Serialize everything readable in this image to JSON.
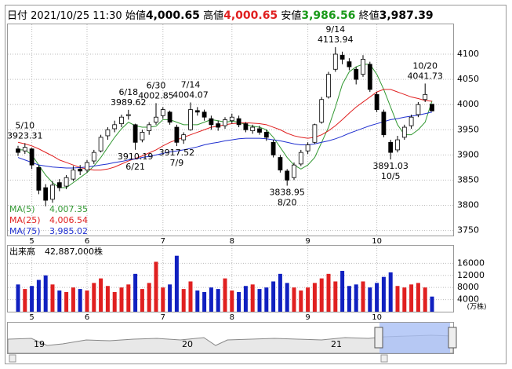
{
  "header": {
    "date_label": "日付",
    "date": "2021/10/25 11:30",
    "open_label": "始値",
    "open": "4,000.65",
    "high_label": "高値",
    "high": "4,000.65",
    "low_label": "安値",
    "low": "3,986.56",
    "close_label": "終値",
    "close": "3,987.39"
  },
  "chart_data": {
    "type": "candlestick",
    "categories": [
      null,
      null,
      "5",
      null,
      null,
      null,
      null,
      null,
      null,
      null,
      "6",
      null,
      null,
      null,
      null,
      null,
      null,
      null,
      null,
      null,
      null,
      "7",
      null,
      null,
      null,
      null,
      null,
      null,
      null,
      null,
      null,
      "8",
      null,
      null,
      null,
      null,
      null,
      null,
      null,
      null,
      null,
      null,
      "9",
      null,
      null,
      null,
      null,
      null,
      null,
      null,
      null,
      null,
      "10",
      null,
      null,
      null,
      null,
      null,
      null,
      null,
      null
    ],
    "open": [
      3912,
      3908,
      3912,
      3875,
      3835,
      3812,
      3845,
      3838,
      3852,
      3872,
      3870,
      3888,
      3908,
      3938,
      3952,
      3962,
      3978,
      3960,
      3930,
      3948,
      3965,
      3978,
      3985,
      3955,
      3930,
      3950,
      3988,
      3985,
      3972,
      3962,
      3958,
      3968,
      3972,
      3962,
      3948,
      3952,
      3945,
      3925,
      3895,
      3868,
      3855,
      3882,
      3908,
      3925,
      3965,
      4015,
      4070,
      4098,
      4085,
      4070,
      4060,
      4080,
      4020,
      3985,
      3925,
      3910,
      3935,
      3958,
      3980,
      4010,
      4000.65
    ],
    "high": [
      3918,
      3923.31,
      3914,
      3880,
      3842,
      3848,
      3852,
      3860,
      3878,
      3880,
      3890,
      3910,
      3940,
      3955,
      3968,
      3980,
      3989.62,
      3962,
      3950,
      3965,
      4002.85,
      3995,
      3988,
      3960,
      3945,
      4004.07,
      3995,
      3990,
      3978,
      3968,
      3975,
      3982,
      3978,
      3965,
      3960,
      3958,
      3950,
      3930,
      3900,
      3872,
      3885,
      3910,
      3925,
      3962,
      4015,
      4065,
      4113.94,
      4105,
      4092,
      4075,
      4098,
      4085,
      4025,
      3990,
      3930,
      3938,
      3960,
      3980,
      4005,
      4041.73,
      4000.65
    ],
    "low": [
      3898,
      3902,
      3872,
      3822,
      3798,
      3805,
      3828,
      3832,
      3848,
      3860,
      3865,
      3882,
      3905,
      3930,
      3945,
      3955,
      3970,
      3910.19,
      3925,
      3940,
      3960,
      3972,
      3960,
      3917.52,
      3922,
      3948,
      3978,
      3968,
      3950,
      3948,
      3952,
      3962,
      3955,
      3945,
      3942,
      3940,
      3928,
      3895,
      3865,
      3838.95,
      3850,
      3878,
      3902,
      3922,
      3962,
      4012,
      4065,
      4080,
      4068,
      4040,
      4055,
      4025,
      3985,
      3935,
      3891.03,
      3905,
      3930,
      3952,
      3975,
      4005,
      3986.56
    ],
    "close": [
      3905,
      3915,
      3880,
      3830,
      3810,
      3840,
      3835,
      3855,
      3870,
      3868,
      3885,
      3905,
      3935,
      3950,
      3960,
      3975,
      3980,
      3925,
      3945,
      3960,
      3975,
      3990,
      3965,
      3925,
      3940,
      3990,
      3985,
      3975,
      3960,
      3955,
      3970,
      3975,
      3960,
      3950,
      3955,
      3945,
      3935,
      3900,
      3870,
      3850,
      3880,
      3905,
      3920,
      3960,
      4010,
      4060,
      4100,
      4090,
      4075,
      4050,
      4090,
      4030,
      3990,
      3940,
      3905,
      3930,
      3955,
      3975,
      4000,
      4020,
      3987.39
    ],
    "up_color": "#ffffff",
    "down_color": "#000000",
    "ylim": [
      3740,
      4153
    ],
    "yticks": [
      3750,
      3800,
      3850,
      3900,
      3950,
      4000,
      4050,
      4100
    ],
    "grid": true,
    "ma": [
      {
        "name": "MA(5)",
        "legend_value": "4,007.35",
        "color": "#339933",
        "values": [
          3910,
          3910,
          3900,
          3880,
          3860,
          3845,
          3835,
          3835,
          3845,
          3855,
          3865,
          3878,
          3895,
          3915,
          3935,
          3952,
          3965,
          3958,
          3955,
          3955,
          3957,
          3970,
          3970,
          3965,
          3960,
          3960,
          3960,
          3965,
          3970,
          3968,
          3965,
          3967,
          3965,
          3960,
          3957,
          3955,
          3950,
          3935,
          3915,
          3895,
          3880,
          3872,
          3880,
          3895,
          3925,
          3955,
          3995,
          4040,
          4065,
          4075,
          4080,
          4080,
          4060,
          4030,
          3995,
          3960,
          3940,
          3940,
          3950,
          3965,
          4007.35
        ]
      },
      {
        "name": "MA(25)",
        "legend_value": "4,006.54",
        "color": "#e02020",
        "values": [
          3925,
          3922,
          3918,
          3912,
          3905,
          3898,
          3890,
          3885,
          3880,
          3875,
          3872,
          3870,
          3870,
          3872,
          3876,
          3882,
          3888,
          3893,
          3898,
          3904,
          3910,
          3918,
          3925,
          3930,
          3935,
          3940,
          3945,
          3950,
          3955,
          3957,
          3960,
          3962,
          3963,
          3964,
          3963,
          3962,
          3960,
          3955,
          3950,
          3943,
          3938,
          3935,
          3933,
          3935,
          3940,
          3948,
          3958,
          3970,
          3983,
          3995,
          4005,
          4015,
          4025,
          4030,
          4030,
          4025,
          4020,
          4015,
          4012,
          4008,
          4006.54
        ]
      },
      {
        "name": "MA(75)",
        "legend_value": "3,985.02",
        "color": "#2030d0",
        "values": [
          3895,
          3890,
          3885,
          3880,
          3878,
          3876,
          3875,
          3874,
          3874,
          3875,
          3876,
          3878,
          3880,
          3882,
          3885,
          3887,
          3890,
          3892,
          3895,
          3897,
          3900,
          3903,
          3906,
          3908,
          3910,
          3913,
          3916,
          3920,
          3923,
          3925,
          3928,
          3930,
          3932,
          3933,
          3933,
          3933,
          3932,
          3930,
          3928,
          3925,
          3922,
          3920,
          3920,
          3922,
          3925,
          3928,
          3932,
          3937,
          3943,
          3948,
          3953,
          3958,
          3962,
          3966,
          3970,
          3972,
          3975,
          3977,
          3979,
          3982,
          3985.02
        ]
      }
    ],
    "annotations": [
      {
        "date": "5/10",
        "value": 3923.31
      },
      {
        "date": "6/18",
        "value": 3989.62
      },
      {
        "date": "6/21",
        "value": 3910.19
      },
      {
        "date": "6/30",
        "value": 4002.85
      },
      {
        "date": "7/9",
        "value": 3917.52
      },
      {
        "date": "7/14",
        "value": 4004.07
      },
      {
        "date": "8/20",
        "value": 3838.95
      },
      {
        "date": "9/14",
        "value": 4113.94
      },
      {
        "date": "10/5",
        "value": 3891.03
      },
      {
        "date": "10/20",
        "value": 4041.73
      }
    ],
    "volume": {
      "title": "出来高",
      "total": "42,887,000株",
      "unit": "(万株)",
      "up_color": "#e02020",
      "down_color": "#1020c0",
      "values": [
        9000,
        7500,
        8500,
        10500,
        12000,
        9000,
        7000,
        6500,
        8000,
        7500,
        7000,
        9500,
        11000,
        8500,
        6500,
        8000,
        9000,
        12500,
        7500,
        9500,
        16500,
        8000,
        9000,
        18500,
        7500,
        10000,
        7000,
        6500,
        8000,
        7500,
        11000,
        7000,
        6500,
        8500,
        9000,
        7500,
        8000,
        10000,
        12500,
        9500,
        8000,
        7000,
        8000,
        9500,
        11000,
        12500,
        10000,
        13500,
        8500,
        9000,
        10000,
        8000,
        9500,
        11500,
        13000,
        8500,
        8000,
        9000,
        9500,
        8000,
        5000
      ],
      "ylim": [
        0,
        21800
      ],
      "yticks": [
        4000,
        8000,
        12000,
        16000
      ]
    }
  },
  "navigator": {
    "labels": [
      "19",
      "20",
      "21"
    ]
  }
}
